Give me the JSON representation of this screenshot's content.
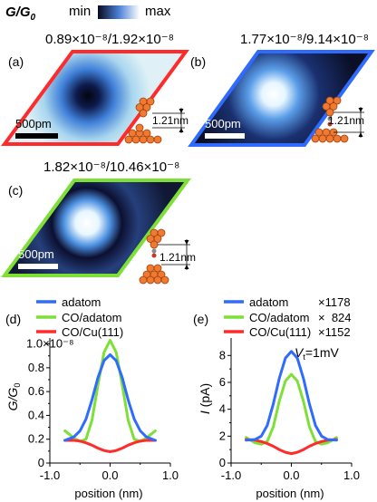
{
  "colorbar": {
    "symbol": "G/G",
    "symbol_sub": "0",
    "min_label": "min",
    "max_label": "max",
    "colors": {
      "min": "#0a0a1e",
      "mid": "#4a7fd6",
      "max": "#ffffff"
    }
  },
  "panels": [
    {
      "label": "(a)",
      "ratio_text": "0.89×10⁻⁸/1.92×10⁻⁸",
      "scale_text": "500pm",
      "height_text": "1.21nm",
      "border_color": "#ff2b2b",
      "contrast": "dark-center",
      "tip": "adatom"
    },
    {
      "label": "(b)",
      "ratio_text": "1.77×10⁻⁸/9.14×10⁻⁸",
      "scale_text": "500pm",
      "height_text": "1.21nm",
      "border_color": "#2f6bff",
      "contrast": "bright-center",
      "tip": "co-adatom"
    },
    {
      "label": "(c)",
      "ratio_text": "1.82×10⁻⁸/10.46×10⁻⁸",
      "scale_text": "500pm",
      "height_text": "1.21nm",
      "border_color": "#7ee037",
      "contrast": "bright-center",
      "tip": "co-cu"
    }
  ],
  "chart_data": [
    {
      "label": "(d)",
      "type": "line",
      "title": "",
      "xlabel": "position (nm)",
      "ylabel": "G/G",
      "ylabel_sub": "0",
      "xlim": [
        -1.0,
        1.0
      ],
      "ylim": [
        0,
        1.05
      ],
      "x_ticks": [
        -1.0,
        0.0,
        1.0
      ],
      "x_ticklabels": [
        "-1.0",
        "0.0",
        "1.0"
      ],
      "y_ticks": [
        0,
        0.2,
        0.4,
        0.6,
        0.8,
        1.0
      ],
      "y_ticklabels": [
        "0",
        "0.2",
        "0.4",
        "0.6",
        "0.8",
        "1.0×10⁻⁸"
      ],
      "series": [
        {
          "name": "adatom",
          "color": "#2f6bff",
          "x": [
            -0.75,
            -0.6,
            -0.5,
            -0.4,
            -0.3,
            -0.2,
            -0.1,
            0,
            0.1,
            0.2,
            0.3,
            0.4,
            0.5,
            0.6,
            0.75
          ],
          "y": [
            0.19,
            0.22,
            0.27,
            0.37,
            0.53,
            0.72,
            0.86,
            0.91,
            0.86,
            0.72,
            0.53,
            0.37,
            0.27,
            0.22,
            0.19
          ]
        },
        {
          "name": "CO/adatom",
          "color": "#7ee037",
          "x": [
            -0.75,
            -0.7,
            -0.6,
            -0.5,
            -0.4,
            -0.3,
            -0.2,
            -0.1,
            0,
            0.1,
            0.2,
            0.3,
            0.4,
            0.5,
            0.6,
            0.7,
            0.75
          ],
          "y": [
            0.27,
            0.25,
            0.21,
            0.18,
            0.2,
            0.36,
            0.66,
            0.93,
            1.03,
            0.93,
            0.66,
            0.36,
            0.2,
            0.18,
            0.21,
            0.25,
            0.27
          ]
        },
        {
          "name": "CO/Cu(111)",
          "color": "#ff2b2b",
          "x": [
            -0.75,
            -0.6,
            -0.5,
            -0.4,
            -0.3,
            -0.2,
            -0.1,
            0,
            0.1,
            0.2,
            0.3,
            0.4,
            0.5,
            0.6,
            0.75
          ],
          "y": [
            0.19,
            0.19,
            0.185,
            0.17,
            0.15,
            0.125,
            0.105,
            0.095,
            0.105,
            0.125,
            0.15,
            0.17,
            0.185,
            0.19,
            0.19
          ]
        }
      ]
    },
    {
      "label": "(e)",
      "type": "line",
      "title": "",
      "xlabel": "position (nm)",
      "ylabel": "I (pA)",
      "annotation": "V",
      "annotation_sub": "t",
      "annotation_rest": "=1mV",
      "xlim": [
        -1.0,
        1.0
      ],
      "ylim": [
        0,
        9.3
      ],
      "x_ticks": [
        -1.0,
        0.0,
        1.0
      ],
      "x_ticklabels": [
        "-1.0",
        "0.0",
        "1.0"
      ],
      "y_ticks": [
        0,
        2,
        4,
        6,
        8
      ],
      "y_ticklabels": [
        "0",
        "2",
        "4",
        "6",
        "8"
      ],
      "series": [
        {
          "name": "adatom",
          "factor": "×1178",
          "color": "#2f6bff",
          "x": [
            -0.75,
            -0.6,
            -0.5,
            -0.4,
            -0.3,
            -0.2,
            -0.1,
            0,
            0.1,
            0.2,
            0.3,
            0.4,
            0.5,
            0.6,
            0.75
          ],
          "y": [
            1.7,
            1.75,
            2.0,
            2.8,
            4.4,
            6.3,
            7.8,
            8.3,
            7.8,
            6.3,
            4.4,
            2.8,
            2.0,
            1.75,
            1.7
          ]
        },
        {
          "name": "CO/adatom",
          "factor": "×  824",
          "color": "#7ee037",
          "x": [
            -0.75,
            -0.7,
            -0.6,
            -0.5,
            -0.4,
            -0.3,
            -0.2,
            -0.1,
            0,
            0.1,
            0.2,
            0.3,
            0.4,
            0.5,
            0.6,
            0.7,
            0.75
          ],
          "y": [
            1.9,
            1.75,
            1.5,
            1.4,
            1.6,
            2.7,
            4.6,
            6.1,
            6.6,
            6.1,
            4.6,
            2.7,
            1.6,
            1.4,
            1.5,
            1.75,
            1.9
          ]
        },
        {
          "name": "CO/Cu(111)",
          "factor": "×1152",
          "color": "#ff2b2b",
          "x": [
            -0.75,
            -0.6,
            -0.5,
            -0.4,
            -0.3,
            -0.2,
            -0.1,
            0,
            0.1,
            0.2,
            0.3,
            0.4,
            0.5,
            0.6,
            0.75
          ],
          "y": [
            1.75,
            1.7,
            1.6,
            1.45,
            1.25,
            1.0,
            0.8,
            0.7,
            0.8,
            1.0,
            1.25,
            1.45,
            1.6,
            1.7,
            1.75
          ]
        }
      ]
    }
  ]
}
